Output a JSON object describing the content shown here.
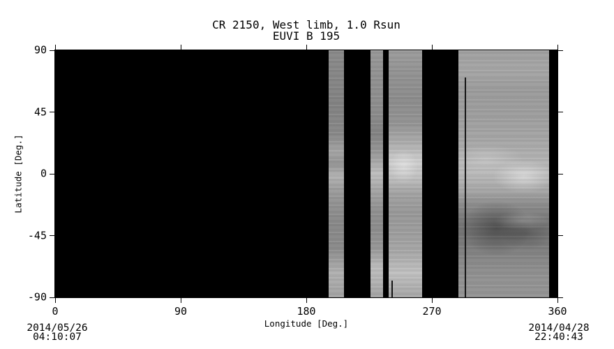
{
  "title": {
    "line1": "CR 2150, West limb, 1.0 Rsun",
    "line2": "EUVI B 195"
  },
  "axes": {
    "x": {
      "label": "Longitude [Deg.]",
      "tick_labels": [
        "0",
        "90",
        "180",
        "270",
        "360"
      ]
    },
    "y": {
      "label": "Latitude [Deg.]",
      "tick_labels": [
        "90",
        "45",
        "0",
        "-45",
        "-90"
      ]
    }
  },
  "timestamps": {
    "left": {
      "date": "2014/05/26",
      "time": "04:10:07"
    },
    "right": {
      "date": "2014/04/28",
      "time": "22:40:43"
    }
  },
  "colors": {
    "background": "#ffffff",
    "no_data": "#000000",
    "frame_and_text": "#000000"
  },
  "chart_data": {
    "type": "heatmap",
    "title": "CR 2150, West limb, 1.0 Rsun",
    "subtitle": "EUVI B 195",
    "xlabel": "Longitude [Deg.]",
    "ylabel": "Latitude [Deg.]",
    "xlim": [
      0,
      360
    ],
    "ylim": [
      -90,
      90
    ],
    "xticks": [
      0,
      90,
      180,
      270,
      360
    ],
    "yticks": [
      90,
      45,
      0,
      -45,
      -90
    ],
    "grid": false,
    "colormap": "grayscale EUV 195 A intensity",
    "no_data_fill": "black",
    "start_time": "2014/05/26 04:10:07",
    "end_time": "2014/04/28 22:40:43",
    "data_segments": [
      {
        "id": "strip-1",
        "lon_from": 196,
        "lon_to": 207,
        "lat_from": -90,
        "lat_to": 90,
        "note": "narrow gray strip; brighter bands near lat 0 and lat -75"
      },
      {
        "id": "strip-2",
        "lon_from": 226,
        "lon_to": 235,
        "lat_from": -90,
        "lat_to": 90,
        "note": "narrow gray strip; bright near lat 0 and lat -75"
      },
      {
        "id": "strip-3",
        "lon_from": 239,
        "lon_to": 263,
        "lat_from": -90,
        "lat_to": 90,
        "note": "gray strip; bright plage region near lat +10 to -10"
      },
      {
        "id": "strip-4",
        "lon_from": 289,
        "lon_to": 354,
        "lat_from": -90,
        "lat_to": 90,
        "note": "wide gray strip; bright band near lat 0, dark coronal hole near lat -25 to -55"
      }
    ],
    "artifacts": [
      {
        "id": "line-1",
        "type": "vertical-line",
        "lon": 241.5,
        "lat_from": -90,
        "lat_to": -78
      },
      {
        "id": "line-2",
        "type": "vertical-line",
        "lon": 294,
        "lat_from": -90,
        "lat_to": 70
      }
    ]
  }
}
